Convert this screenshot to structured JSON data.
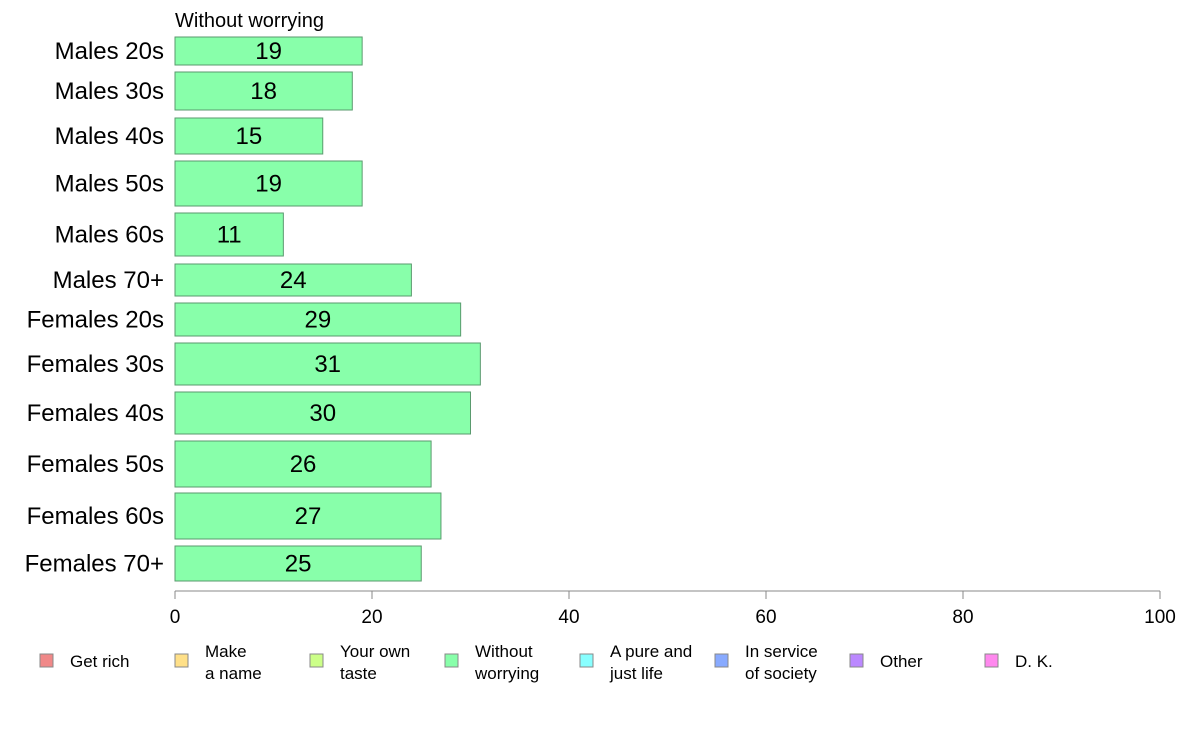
{
  "chart_data": {
    "type": "bar",
    "orientation": "horizontal",
    "title": "Without worrying",
    "categories": [
      "Males 20s",
      "Males 30s",
      "Males 40s",
      "Males 50s",
      "Males 60s",
      "Males 70+",
      "Females 20s",
      "Females 30s",
      "Females 40s",
      "Females 50s",
      "Females 60s",
      "Females 70+"
    ],
    "values": [
      19,
      18,
      15,
      19,
      11,
      24,
      29,
      31,
      30,
      26,
      27,
      25
    ],
    "data_labels": [
      "19",
      "18",
      "15",
      "19",
      "11",
      "24",
      "29",
      "31",
      "30",
      "26",
      "27",
      "25"
    ],
    "xlim": [
      0,
      100
    ],
    "xticks": [
      0,
      20,
      40,
      60,
      80,
      100
    ],
    "xtick_labels": [
      "0",
      "20",
      "40",
      "60",
      "80",
      "100"
    ],
    "bar_color": "#88ffaa",
    "bar_edge_color": "#5a9a6e",
    "grid": false,
    "legend_position": "bottom",
    "legend": [
      {
        "lines": [
          "Get rich"
        ],
        "color": "#f08888"
      },
      {
        "lines": [
          "Make",
          "a name"
        ],
        "color": "#ffe088"
      },
      {
        "lines": [
          "Your own",
          "taste"
        ],
        "color": "#ccff88"
      },
      {
        "lines": [
          "Without",
          "worrying"
        ],
        "color": "#88ffaa"
      },
      {
        "lines": [
          "A pure and",
          "just life"
        ],
        "color": "#88ffff"
      },
      {
        "lines": [
          "In service",
          "of society"
        ],
        "color": "#88aaff"
      },
      {
        "lines": [
          "Other"
        ],
        "color": "#bb88ff"
      },
      {
        "lines": [
          "D. K."
        ],
        "color": "#ff88ee"
      }
    ]
  }
}
